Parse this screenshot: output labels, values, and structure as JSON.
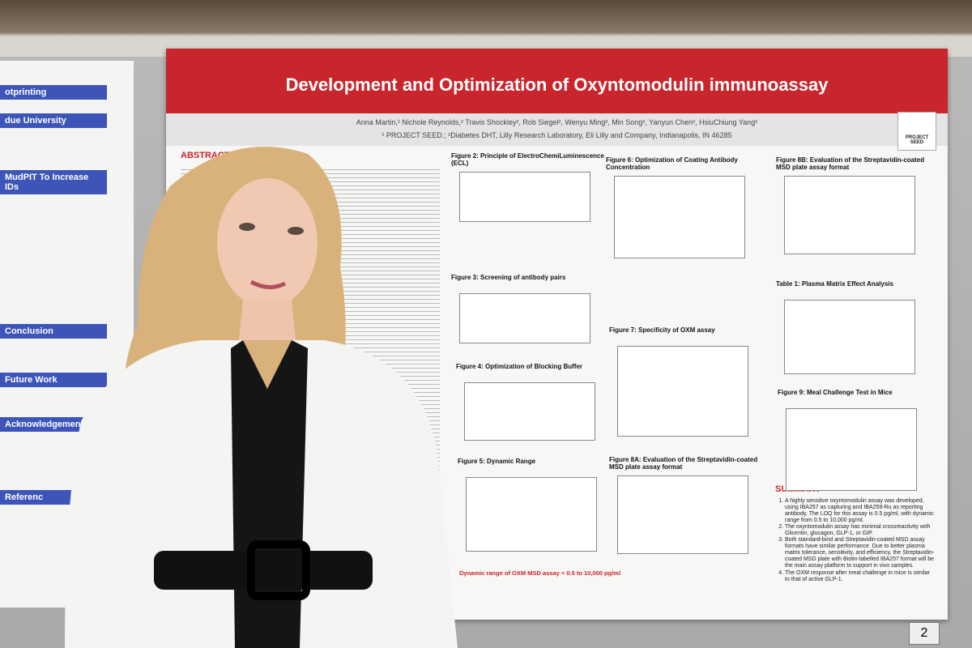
{
  "poster": {
    "title": "Development and Optimization of Oxyntomodulin immunoassay",
    "authors": "Anna Martin,¹ Nichole Reynolds,² Travis Shockley², Rob Siegel², Wenyu Ming², Min Song², Yanyun Chen², HsiuChiung Yang²",
    "affiliations": "¹ PROJECT SEED.; ²Diabetes DHT, Lilly Research Laboratory, Eli Lilly and Company, Indianapolis, IN 46285",
    "logo": "PROJECT SEED",
    "abstract_heading": "ABSTRACT",
    "figures": [
      "Figure 2: Principle of ElectroChemiLuminescence (ECL)",
      "Figure 3: Screening of antibody pairs",
      "Figure 4: Optimization of Blocking Buffer",
      "Figure 5: Dynamic Range",
      "Figure 6: Optimization of Coating Antibody Concentration",
      "Figure 7: Specificity of OXM assay",
      "Figure 8A: Evaluation of the Streptavidin-coated MSD plate assay format",
      "Figure 8B: Evaluation of the Streptavidin-coated MSD plate assay format",
      "Table 1: Plasma Matrix Effect Analysis",
      "Figure 9: Meal Challenge Test in Mice"
    ],
    "dynamic_range_note": "Dynamic range of OXM MSD assay = 0.5 to 10,000 pg/ml",
    "summary_heading": "SUMMARY",
    "summary": [
      "A highly sensitive oxyntomodulin assay was developed, using IBA257 as capturing and IBA259-Ru as reporting antibody. The LOQ for this assay is 0.5 pg/ml, with dynamic range from 0.5 to 10,000 pg/ml.",
      "The oxyntomodulin assay has minimal crossreactivity with Glicentin, glucagon, GLP-1, or GIP.",
      "Both standard-bind and Streptavidin-coated MSD assay formats have similar performance. Due to better plasma matrix tolerance, sensitivity, and efficiency, the Streptavidin-coated MSD plate with Biotin-labelled IBA257 format will be the main assay platform to support in vivo samples.",
      "The OXM response after meal challenge in mice is similar to that of active GLP-1."
    ]
  },
  "left_poster": {
    "headings": [
      "otprinting",
      "due University",
      "MudPIT To Increase IDs",
      "Conclusion",
      "Future Work",
      "Acknowledgemen",
      "Referenc"
    ]
  },
  "board_number": "2"
}
